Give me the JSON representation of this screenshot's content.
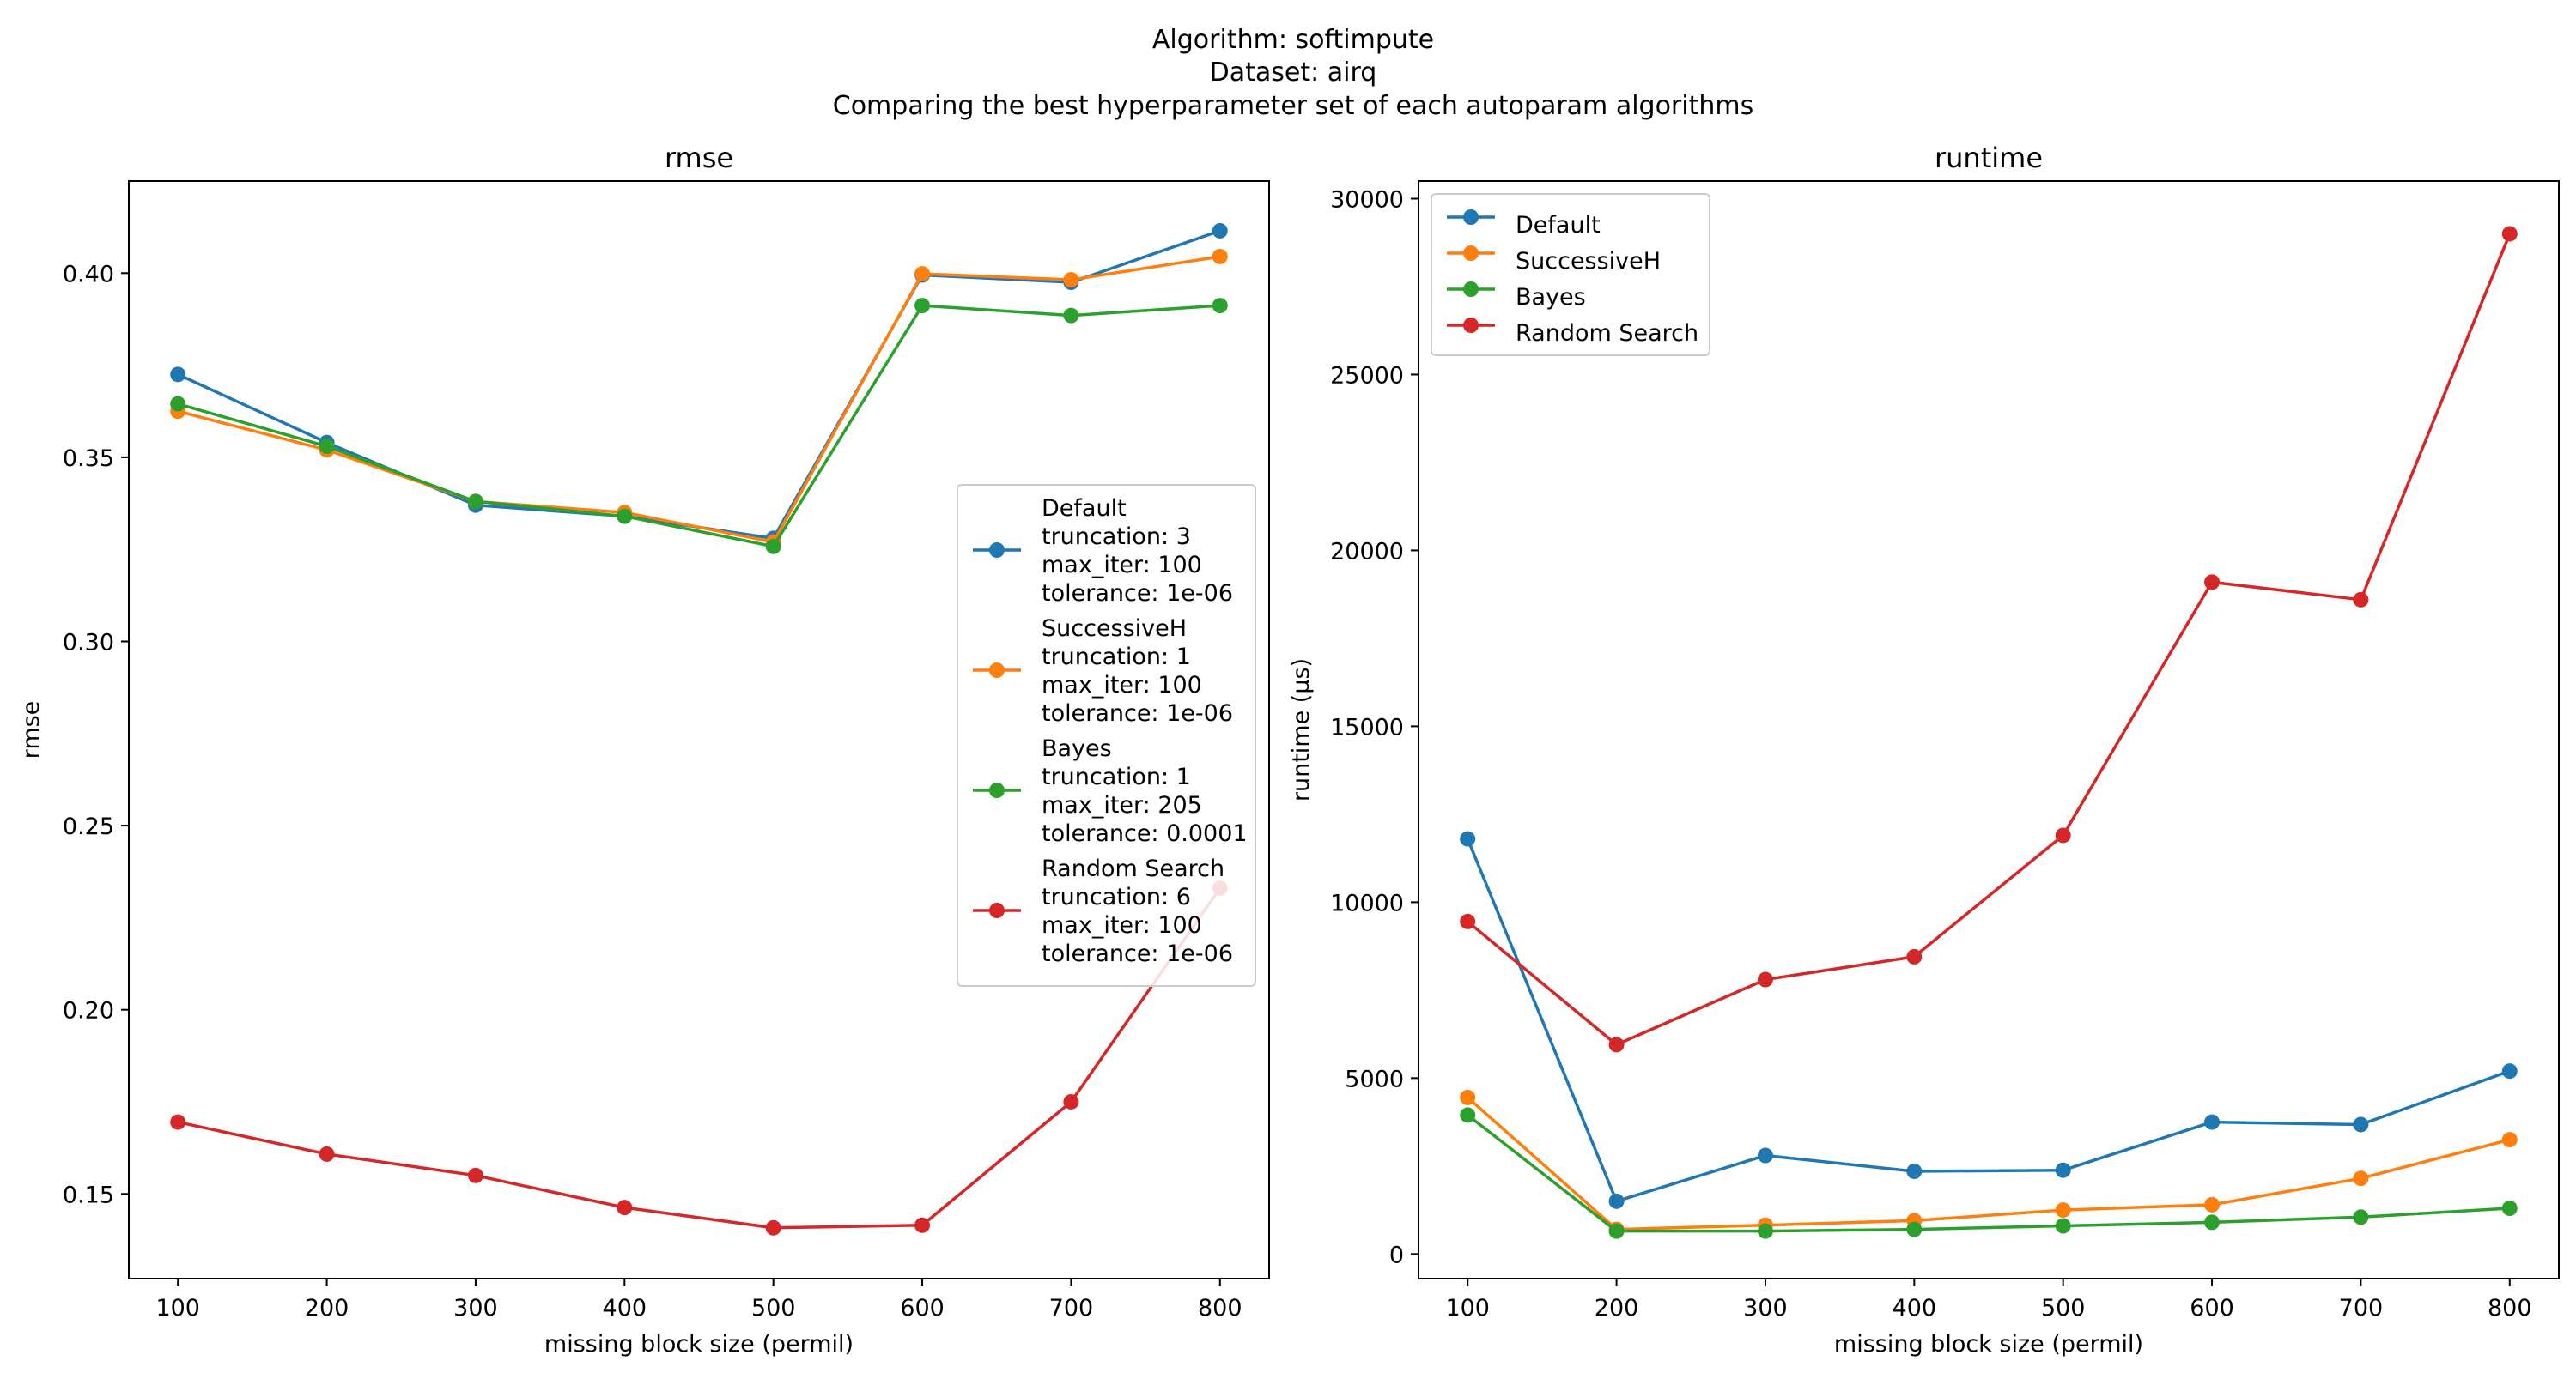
{
  "figure": {
    "suptitle": [
      "Algorithm: softimpute",
      "Dataset: airq",
      "Comparing the best hyperparameter set of each autoparam algorithms"
    ]
  },
  "colors": {
    "Default": "#1f77b4",
    "SuccessiveH": "#ff7f0e",
    "Bayes": "#2ca02c",
    "Random Search": "#d62728"
  },
  "chart_data": [
    {
      "type": "line",
      "title": "rmse",
      "xlabel": "missing block size (permil)",
      "ylabel": "rmse",
      "x": [
        100,
        200,
        300,
        400,
        500,
        600,
        700,
        800
      ],
      "xlim": [
        67,
        833
      ],
      "ylim": [
        0.127,
        0.425
      ],
      "xticks": [
        100,
        200,
        300,
        400,
        500,
        600,
        700,
        800
      ],
      "yticks": [
        0.15,
        0.2,
        0.25,
        0.3,
        0.35,
        0.4
      ],
      "ytick_labels": [
        "0.15",
        "0.20",
        "0.25",
        "0.30",
        "0.35",
        "0.40"
      ],
      "legend_loc": "center-right",
      "series": [
        {
          "name": "Default",
          "values": [
            0.3725,
            0.354,
            0.337,
            0.334,
            0.328,
            0.3995,
            0.3975,
            0.4115
          ],
          "legend_lines": [
            "Default",
            "truncation: 3",
            "max_iter: 100",
            "tolerance: 1e-06"
          ]
        },
        {
          "name": "SuccessiveH",
          "values": [
            0.3625,
            0.352,
            0.338,
            0.335,
            0.327,
            0.3998,
            0.3982,
            0.4045
          ],
          "legend_lines": [
            "SuccessiveH",
            "truncation: 1",
            "max_iter: 100",
            "tolerance: 1e-06"
          ]
        },
        {
          "name": "Bayes",
          "values": [
            0.3645,
            0.353,
            0.338,
            0.334,
            0.3258,
            0.3912,
            0.3885,
            0.3912
          ],
          "legend_lines": [
            "Bayes",
            "truncation: 1",
            "max_iter: 205",
            "tolerance: 0.0001"
          ]
        },
        {
          "name": "Random Search",
          "values": [
            0.1695,
            0.1608,
            0.155,
            0.1463,
            0.1408,
            0.1415,
            0.175,
            0.233
          ],
          "legend_lines": [
            "Random Search",
            "truncation: 6",
            "max_iter: 100",
            "tolerance: 1e-06"
          ]
        }
      ]
    },
    {
      "type": "line",
      "title": "runtime",
      "xlabel": "missing block size (permil)",
      "ylabel": "runtime (µs)",
      "x": [
        100,
        200,
        300,
        400,
        500,
        600,
        700,
        800
      ],
      "xlim": [
        67,
        833
      ],
      "ylim": [
        -700,
        30500
      ],
      "xticks": [
        100,
        200,
        300,
        400,
        500,
        600,
        700,
        800
      ],
      "yticks": [
        0,
        5000,
        10000,
        15000,
        20000,
        25000,
        30000
      ],
      "ytick_labels": [
        "0",
        "5000",
        "10000",
        "15000",
        "20000",
        "25000",
        "30000"
      ],
      "legend_loc": "upper-left",
      "series": [
        {
          "name": "Default",
          "values": [
            11800,
            1500,
            2800,
            2350,
            2380,
            3750,
            3680,
            5200
          ],
          "legend_lines": [
            "Default"
          ]
        },
        {
          "name": "SuccessiveH",
          "values": [
            4450,
            700,
            820,
            950,
            1250,
            1400,
            2150,
            3250
          ],
          "legend_lines": [
            "SuccessiveH"
          ]
        },
        {
          "name": "Bayes",
          "values": [
            3950,
            650,
            650,
            700,
            800,
            900,
            1050,
            1300
          ],
          "legend_lines": [
            "Bayes"
          ]
        },
        {
          "name": "Random Search",
          "values": [
            9450,
            5950,
            7800,
            8450,
            11900,
            19100,
            18600,
            29000
          ],
          "legend_lines": [
            "Random Search"
          ]
        }
      ]
    }
  ]
}
